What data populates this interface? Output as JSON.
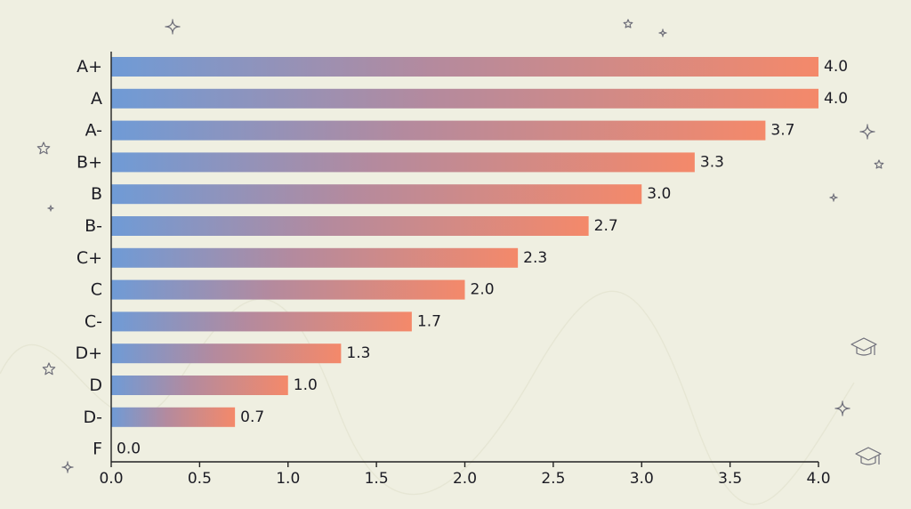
{
  "chart_data": {
    "type": "bar",
    "orientation": "horizontal",
    "categories": [
      "A+",
      "A",
      "A-",
      "B+",
      "B",
      "B-",
      "C+",
      "C",
      "C-",
      "D+",
      "D",
      "D-",
      "F"
    ],
    "values": [
      4.0,
      4.0,
      3.7,
      3.3,
      3.0,
      2.7,
      2.3,
      2.0,
      1.7,
      1.3,
      1.0,
      0.7,
      0.0
    ],
    "value_labels": [
      "4.0",
      "4.0",
      "3.7",
      "3.3",
      "3.0",
      "2.7",
      "2.3",
      "2.0",
      "1.7",
      "1.3",
      "1.0",
      "0.7",
      "0.0"
    ],
    "x_ticks": [
      "0.0",
      "0.5",
      "1.0",
      "1.5",
      "2.0",
      "2.5",
      "3.0",
      "3.5",
      "4.0"
    ],
    "xlim": [
      0,
      4.0
    ],
    "title": "",
    "xlabel": "",
    "ylabel": "",
    "grid": false,
    "legend": "none",
    "colors": {
      "background": "#efefe1",
      "bar_start": "#6f9bd6",
      "bar_mid": "#b88a9e",
      "bar_end": "#f4896a",
      "text": "#1c1c24"
    }
  },
  "decorations": {
    "icons": [
      "sparkle-icon",
      "star-icon",
      "graduation-cap-icon"
    ]
  }
}
